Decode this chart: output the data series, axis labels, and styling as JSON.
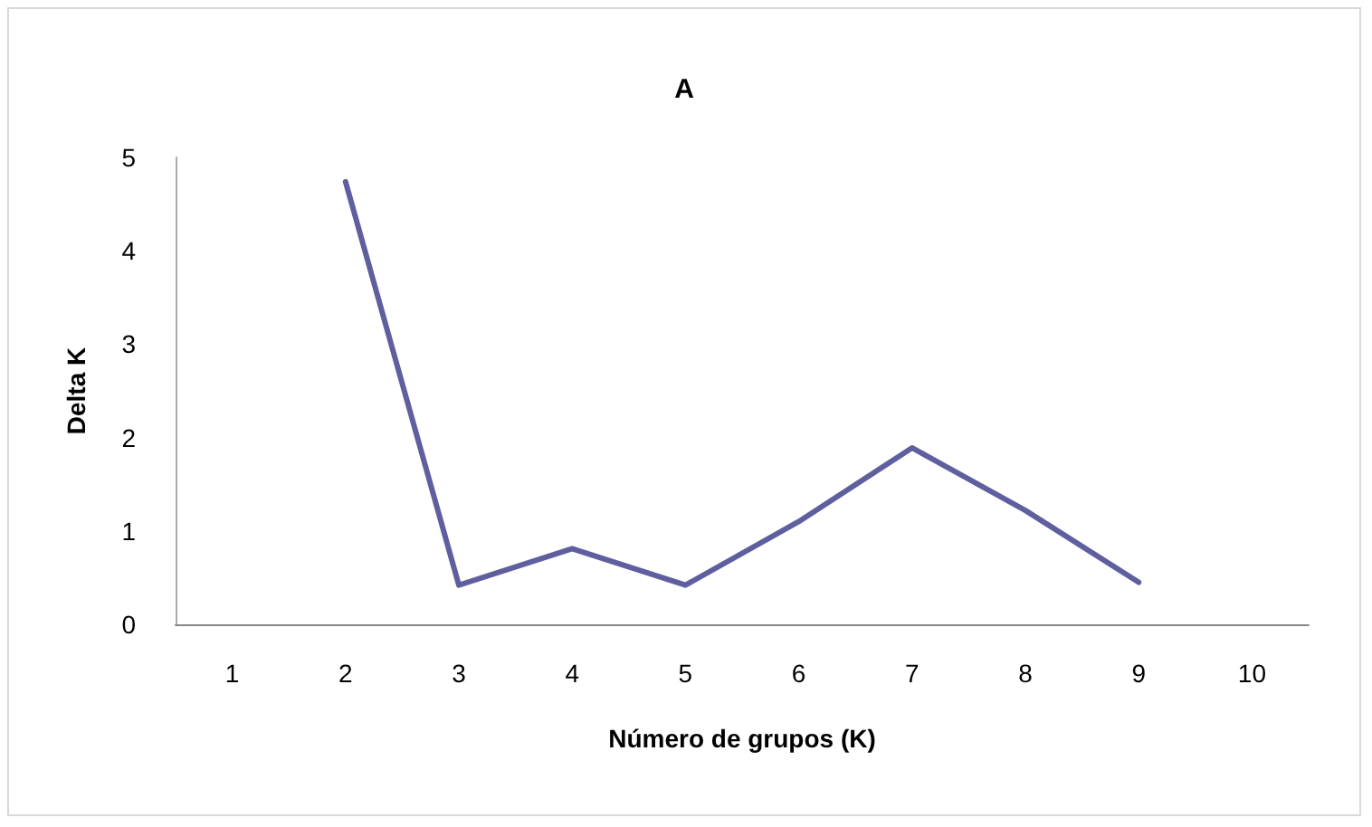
{
  "chart_data": {
    "type": "line",
    "title": "A",
    "xlabel": "Número de grupos (K)",
    "ylabel": "Delta K",
    "categories": [
      "1",
      "2",
      "3",
      "4",
      "5",
      "6",
      "7",
      "8",
      "9",
      "10"
    ],
    "series": [
      {
        "color": "#5f5f9f",
        "values": [
          null,
          4.74,
          0.42,
          0.81,
          0.42,
          1.1,
          1.89,
          1.22,
          0.45,
          null
        ]
      }
    ],
    "ylim": [
      0,
      5
    ],
    "yticks": [
      0,
      1,
      2,
      3,
      4,
      5
    ],
    "grid": false,
    "marker": "none",
    "line_style": "solid"
  }
}
